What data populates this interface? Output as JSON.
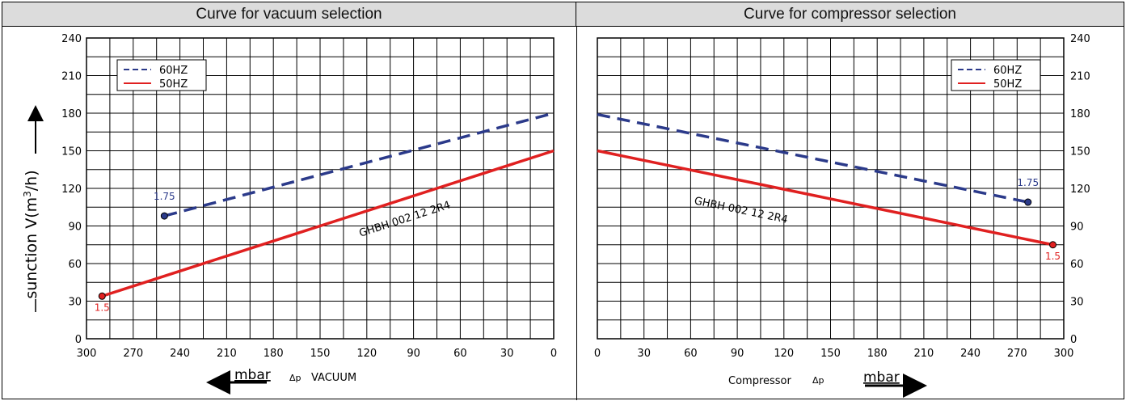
{
  "left_title": "Curve for vacuum selection",
  "right_title": "Curve for compressor selection",
  "left_xlabel_unit": "mbar",
  "left_xlabel_symbol": "Δp",
  "left_xlabel_text": "VACUUM",
  "right_xlabel_text": "Compressor",
  "right_xlabel_symbol": "Δp",
  "right_xlabel_unit": "mbar",
  "ylabel_text": "sunction V(m",
  "ylabel_sup": "3",
  "ylabel_tail": "/h)",
  "model_label": "GHBH 002  12 2R4",
  "colors": {
    "sixty": "#2b3a8a",
    "fifty": "#e02020",
    "grid": "#000000"
  },
  "chart_data": [
    {
      "type": "line",
      "title": "Curve for vacuum selection",
      "xlabel": "mbar Δp VACUUM",
      "ylabel": "sunction V(m3/h)",
      "x_reversed": true,
      "xlim": [
        300,
        0
      ],
      "ylim": [
        0,
        240
      ],
      "x_ticks": [
        300,
        270,
        240,
        210,
        180,
        150,
        120,
        90,
        60,
        30,
        0
      ],
      "y_ticks": [
        0,
        30,
        60,
        90,
        120,
        150,
        180,
        210,
        240
      ],
      "grid": true,
      "legend_position": "top-left",
      "series": [
        {
          "name": "60HZ",
          "style": "dashed",
          "color": "#2b3a8a",
          "points": [
            [
              250,
              98
            ],
            [
              0,
              180
            ]
          ],
          "end_label": "1.75"
        },
        {
          "name": "50HZ",
          "style": "solid",
          "color": "#e02020",
          "points": [
            [
              290,
              34
            ],
            [
              0,
              150
            ]
          ],
          "end_label": "1.5"
        }
      ],
      "annotation": "GHBH 002  12 2R4"
    },
    {
      "type": "line",
      "title": "Curve for compressor selection",
      "xlabel": "Compressor Δp mbar",
      "x_reversed": false,
      "xlim": [
        0,
        300
      ],
      "ylim": [
        0,
        240
      ],
      "x_ticks": [
        0,
        30,
        60,
        90,
        120,
        150,
        180,
        210,
        240,
        270,
        300
      ],
      "y_ticks": [
        0,
        30,
        60,
        90,
        120,
        150,
        180,
        210,
        240
      ],
      "grid": true,
      "legend_position": "top-right",
      "series": [
        {
          "name": "60HZ",
          "style": "dashed",
          "color": "#2b3a8a",
          "points": [
            [
              0,
              179
            ],
            [
              277,
              109
            ]
          ],
          "end_label": "1.75"
        },
        {
          "name": "50HZ",
          "style": "solid",
          "color": "#e02020",
          "points": [
            [
              0,
              150
            ],
            [
              293,
              75
            ]
          ],
          "end_label": "1.5"
        }
      ],
      "annotation": "GHBH 002  12 2R4"
    }
  ]
}
